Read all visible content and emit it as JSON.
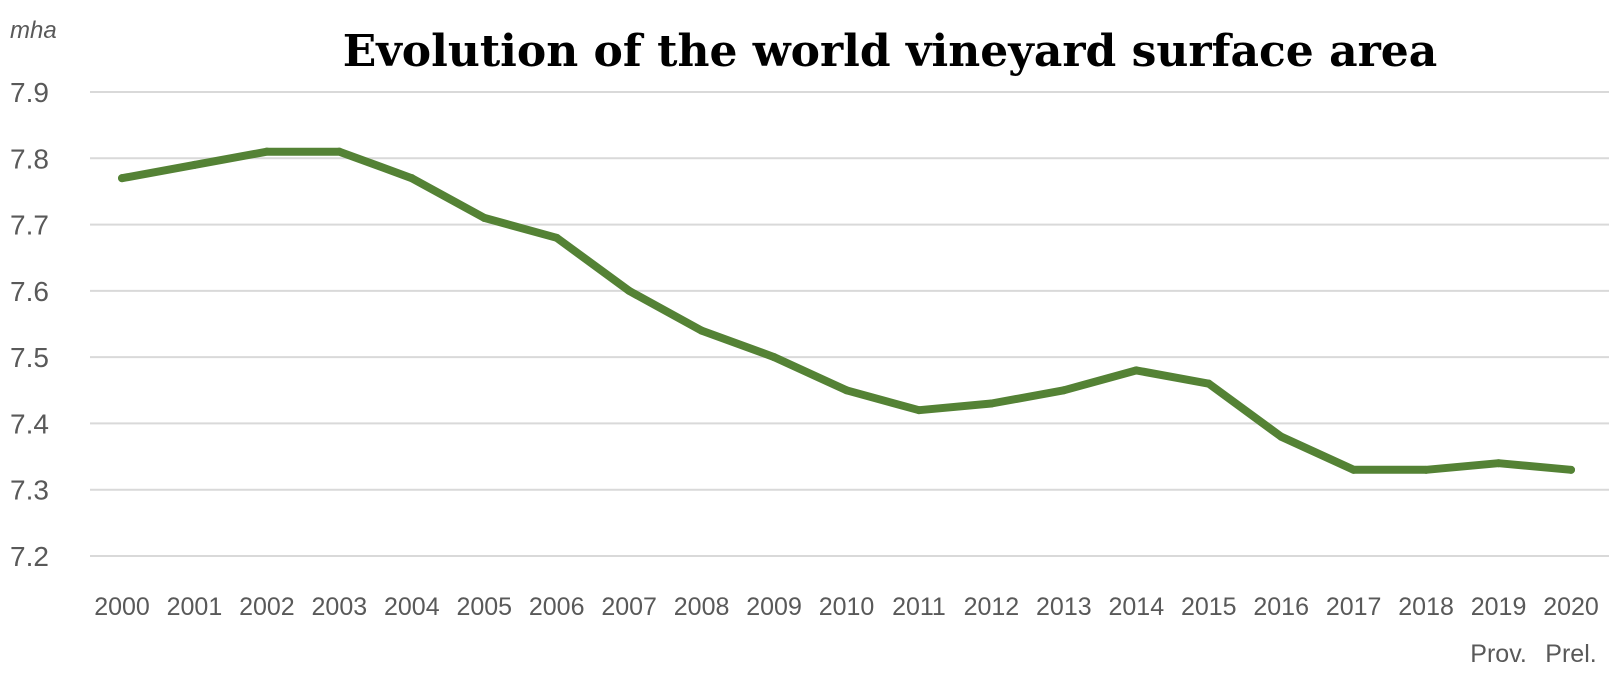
{
  "chart_data": {
    "type": "line",
    "title": "Evolution of the world vineyard surface area",
    "ylabel": "mha",
    "xlabel": "",
    "ylim": [
      7.2,
      7.9
    ],
    "yticks": [
      "7.2",
      "7.3",
      "7.4",
      "7.5",
      "7.6",
      "7.7",
      "7.8",
      "7.9"
    ],
    "grid": true,
    "line_color": "#548235",
    "categories": [
      "2000",
      "2001",
      "2002",
      "2003",
      "2004",
      "2005",
      "2006",
      "2007",
      "2008",
      "2009",
      "2010",
      "2011",
      "2012",
      "2013",
      "2014",
      "2015",
      "2016",
      "2017",
      "2018",
      "2019",
      "2020"
    ],
    "category_notes": [
      {
        "category": "2019",
        "note": "Prov."
      },
      {
        "category": "2020",
        "note": "Prel."
      }
    ],
    "series": [
      {
        "values": [
          7.77,
          7.79,
          7.81,
          7.81,
          7.77,
          7.71,
          7.68,
          7.6,
          7.54,
          7.5,
          7.45,
          7.42,
          7.43,
          7.45,
          7.48,
          7.46,
          7.38,
          7.33,
          7.33,
          7.34,
          7.33
        ]
      }
    ]
  }
}
